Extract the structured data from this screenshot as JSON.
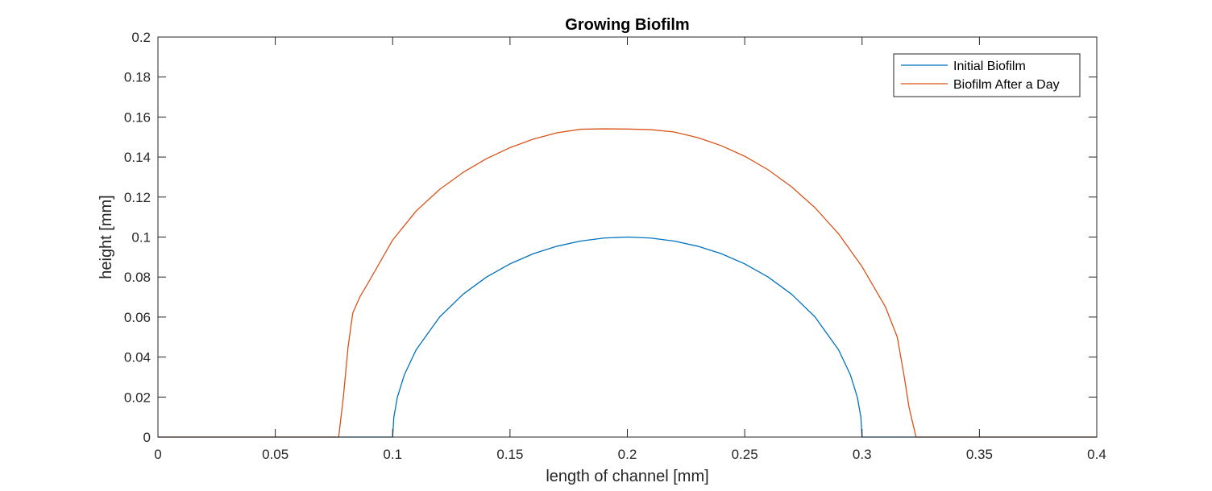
{
  "chart_data": {
    "type": "line",
    "title": "Growing Biofilm",
    "xlabel": "length of channel [mm]",
    "ylabel": "height [mm]",
    "xlim": [
      0,
      0.4
    ],
    "ylim": [
      0,
      0.2
    ],
    "xticks": [
      "0",
      "0.05",
      "0.1",
      "0.15",
      "0.2",
      "0.25",
      "0.3",
      "0.35",
      "0.4"
    ],
    "yticks": [
      "0",
      "0.02",
      "0.04",
      "0.06",
      "0.08",
      "0.1",
      "0.12",
      "0.14",
      "0.16",
      "0.18",
      "0.2"
    ],
    "grid": false,
    "legend_position": "top-right",
    "series": [
      {
        "name": "Initial Biofilm",
        "color": "#0072BD",
        "x": [
          0,
          0.1,
          0.1005,
          0.102,
          0.105,
          0.11,
          0.12,
          0.13,
          0.14,
          0.15,
          0.16,
          0.17,
          0.18,
          0.19,
          0.2,
          0.21,
          0.22,
          0.23,
          0.24,
          0.25,
          0.26,
          0.27,
          0.28,
          0.29,
          0.295,
          0.298,
          0.2995,
          0.3,
          0.4
        ],
        "y": [
          0,
          0,
          0.0099,
          0.0199,
          0.0312,
          0.0436,
          0.06,
          0.0714,
          0.08,
          0.0866,
          0.0917,
          0.0954,
          0.098,
          0.0995,
          0.1,
          0.0995,
          0.098,
          0.0954,
          0.0917,
          0.0866,
          0.08,
          0.0714,
          0.06,
          0.0436,
          0.0312,
          0.0199,
          0.0099,
          0,
          0
        ]
      },
      {
        "name": "Biofilm After a Day",
        "color": "#D95319",
        "x": [
          0,
          0.077,
          0.079,
          0.081,
          0.083,
          0.086,
          0.09,
          0.1,
          0.11,
          0.12,
          0.13,
          0.14,
          0.15,
          0.16,
          0.17,
          0.18,
          0.19,
          0.2,
          0.21,
          0.22,
          0.23,
          0.24,
          0.25,
          0.26,
          0.27,
          0.28,
          0.29,
          0.3,
          0.31,
          0.315,
          0.318,
          0.32,
          0.322,
          0.323,
          0.4
        ],
        "y": [
          0,
          0,
          0.02,
          0.045,
          0.062,
          0.07,
          0.078,
          0.0985,
          0.113,
          0.1238,
          0.1323,
          0.1392,
          0.1447,
          0.149,
          0.1521,
          0.1539,
          0.1541,
          0.154,
          0.1537,
          0.1525,
          0.1497,
          0.1457,
          0.1404,
          0.1336,
          0.1251,
          0.1146,
          0.1016,
          0.0852,
          0.065,
          0.05,
          0.03,
          0.015,
          0.005,
          0,
          0
        ]
      }
    ]
  }
}
